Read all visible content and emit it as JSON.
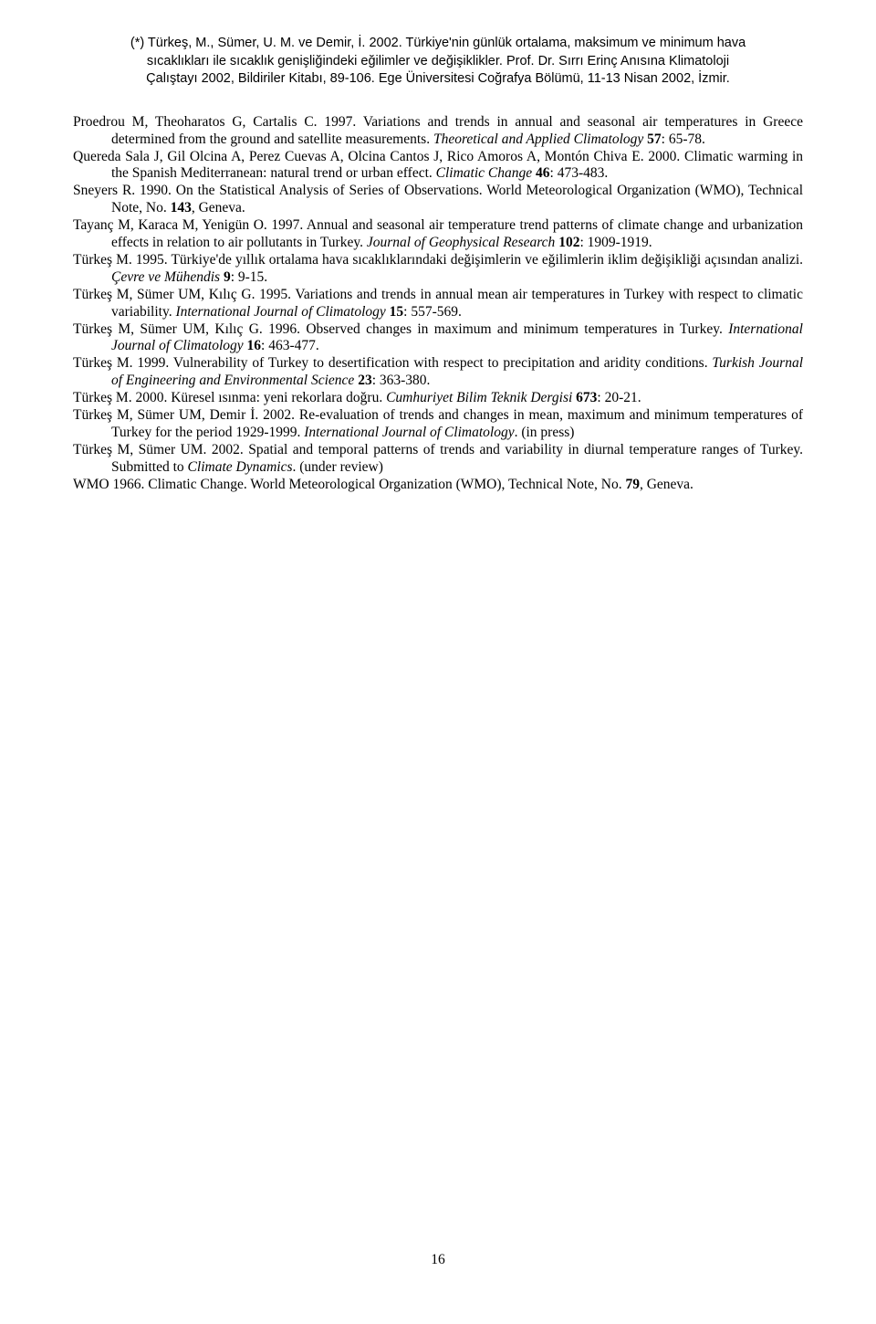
{
  "header": {
    "line1": "(*) Türkeş, M., Sümer, U. M. ve Demir, İ. 2002. Türkiye'nin günlük ortalama, maksimum ve minimum hava",
    "line2": "sıcaklıkları ile sıcaklık genişliğindeki eğilimler ve değişiklikler. Prof. Dr. Sırrı Erinç Anısına Klimatoloji",
    "line3": "Çalıştayı 2002, Bildiriler Kitabı, 89-106. Ege Üniversitesi Coğrafya Bölümü, 11-13 Nisan 2002, İzmir."
  },
  "refs": [
    {
      "pre": "Proedrou M, Theoharatos G, Cartalis C. 1997. Variations and trends in annual and seasonal air temperatures in Greece determined from the ground and satellite measurements. ",
      "ital": "Theoretical and Applied Climatology",
      "post1": " ",
      "bold": "57",
      "post2": ": 65-78."
    },
    {
      "pre": "Quereda Sala J, Gil Olcina A, Perez Cuevas A, Olcina Cantos J, Rico Amoros A, Montón Chiva E. 2000. Climatic warming in the Spanish Mediterranean: natural trend or urban effect. ",
      "ital": "Climatic Change",
      "post1": " ",
      "bold": "46",
      "post2": ": 473-483."
    },
    {
      "pre": "Sneyers R. 1990. On the Statistical Analysis of Series of Observations. World Meteorological Organization (WMO), Technical Note, No. ",
      "ital": "",
      "post1": "",
      "bold": "143",
      "post2": ", Geneva."
    },
    {
      "pre": "Tayanç M, Karaca M, Yenigün O. 1997. Annual and seasonal air temperature trend patterns of climate change and urbanization effects in relation to air pollutants in Turkey. ",
      "ital": "Journal of Geophysical Research",
      "post1": " ",
      "bold": "102",
      "post2": ": 1909-1919."
    },
    {
      "pre": "Türkeş M. 1995. Türkiye'de yıllık ortalama hava sıcaklıklarındaki değişimlerin ve eğilimlerin iklim değişikliği açısından analizi. ",
      "ital": "Çevre ve Mühendis",
      "post1": " ",
      "bold": "9",
      "post2": ": 9-15."
    },
    {
      "pre": "Türkeş M, Sümer UM, Kılıç G. 1995. Variations and trends in annual mean air temperatures in Turkey with respect to climatic variability. ",
      "ital": "International Journal of Climatology",
      "post1": " ",
      "bold": "15",
      "post2": ": 557-569."
    },
    {
      "pre": "Türkeş M, Sümer UM, Kılıç G. 1996. Observed changes in maximum and minimum temperatures in Turkey. ",
      "ital": "International Journal of Climatology",
      "post1": " ",
      "bold": "16",
      "post2": ": 463-477."
    },
    {
      "pre": "Türkeş M. 1999. Vulnerability of Turkey to desertification with respect to precipitation and aridity conditions. ",
      "ital": "Turkish Journal of Engineering and Environmental Science",
      "post1": " ",
      "bold": "23",
      "post2": ": 363-380."
    },
    {
      "pre": "Türkeş M. 2000. Küresel ısınma: yeni rekorlara doğru. ",
      "ital": "Cumhuriyet Bilim Teknik Dergisi",
      "post1": " ",
      "bold": "673",
      "post2": ": 20-21."
    },
    {
      "pre": "Türkeş M, Sümer UM, Demir İ. 2002. Re-evaluation of trends and changes in mean, maximum and minimum temperatures of Turkey for the period 1929-1999. ",
      "ital": "International Journal of Climatology",
      "post1": ". (in press)",
      "bold": "",
      "post2": ""
    },
    {
      "pre": "Türkeş M, Sümer UM. 2002. Spatial and temporal patterns of trends and variability in diurnal temperature ranges of Turkey. Submitted to ",
      "ital": "Climate Dynamics",
      "post1": ". (under review)",
      "bold": "",
      "post2": ""
    },
    {
      "pre": "WMO 1966. Climatic Change. World Meteorological Organization (WMO), Technical Note, No. ",
      "ital": "",
      "post1": "",
      "bold": "79",
      "post2": ", Geneva."
    }
  ],
  "pageNumber": "16"
}
